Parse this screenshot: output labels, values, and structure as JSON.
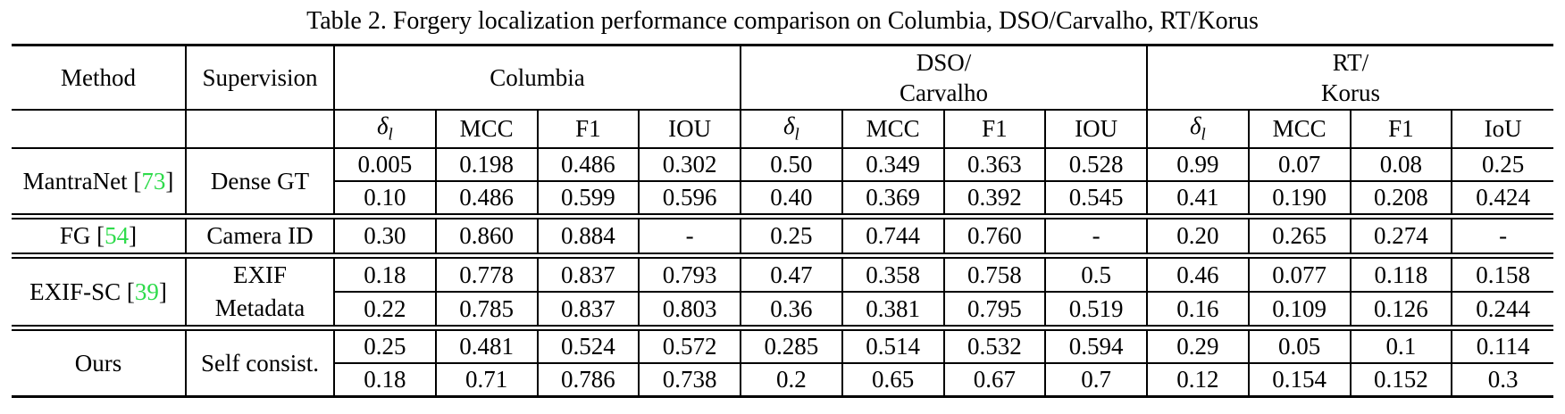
{
  "caption": "Table 2. Forgery localization performance comparison on Columbia, DSO/Carvalho, RT/Korus",
  "colors": {
    "citation_green": "#2EDB4B",
    "text": "#000000",
    "border": "#000000",
    "background": "#FFFFFF"
  },
  "header": {
    "method": "Method",
    "supervision": "Supervision",
    "groups": [
      {
        "line1": "Columbia",
        "line2": ""
      },
      {
        "line1": "DSO/",
        "line2": "Carvalho"
      },
      {
        "line1": "RT/",
        "line2": "Korus"
      }
    ]
  },
  "subheader": {
    "cells": [
      {
        "main": "δ",
        "sub": "l"
      },
      {
        "main": "MCC",
        "sub": ""
      },
      {
        "main": "F1",
        "sub": ""
      },
      {
        "main": "IOU",
        "sub": ""
      },
      {
        "main": "δ",
        "sub": "l"
      },
      {
        "main": "MCC",
        "sub": ""
      },
      {
        "main": "F1",
        "sub": ""
      },
      {
        "main": "IOU",
        "sub": ""
      },
      {
        "main": "δ",
        "sub": "l"
      },
      {
        "main": "MCC",
        "sub": ""
      },
      {
        "main": "F1",
        "sub": ""
      },
      {
        "main": "IoU",
        "sub": ""
      }
    ]
  },
  "rows": [
    {
      "method_pre": "MantraNet [",
      "citation": "73",
      "method_post": "]",
      "supervision_line1": "Dense GT",
      "supervision_line2": "",
      "values": [
        [
          "0.005",
          "0.198",
          "0.486",
          "0.302",
          "0.50",
          "0.349",
          "0.363",
          "0.528",
          "0.99",
          "0.07",
          "0.08",
          "0.25"
        ],
        [
          "0.10",
          "0.486",
          "0.599",
          "0.596",
          "0.40",
          "0.369",
          "0.392",
          "0.545",
          "0.41",
          "0.190",
          "0.208",
          "0.424"
        ]
      ]
    },
    {
      "method_pre": "FG [",
      "citation": "54",
      "method_post": "]",
      "supervision_line1": "Camera ID",
      "supervision_line2": "",
      "values": [
        [
          "0.30",
          "0.860",
          "0.884",
          "-",
          "0.25",
          "0.744",
          "0.760",
          "-",
          "0.20",
          "0.265",
          "0.274",
          "-"
        ]
      ]
    },
    {
      "method_pre": "EXIF-SC [",
      "citation": "39",
      "method_post": "]",
      "supervision_line1": "EXIF",
      "supervision_line2": "Metadata",
      "values": [
        [
          "0.18",
          "0.778",
          "0.837",
          "0.793",
          "0.47",
          "0.358",
          "0.758",
          "0.5",
          "0.46",
          "0.077",
          "0.118",
          "0.158"
        ],
        [
          "0.22",
          "0.785",
          "0.837",
          "0.803",
          "0.36",
          "0.381",
          "0.795",
          "0.519",
          "0.16",
          "0.109",
          "0.126",
          "0.244"
        ]
      ]
    },
    {
      "method_pre": "Ours",
      "citation": "",
      "method_post": "",
      "supervision_line1": "Self consist.",
      "supervision_line2": "",
      "values": [
        [
          "0.25",
          "0.481",
          "0.524",
          "0.572",
          "0.285",
          "0.514",
          "0.532",
          "0.594",
          "0.29",
          "0.05",
          "0.1",
          "0.114"
        ],
        [
          "0.18",
          "0.71",
          "0.786",
          "0.738",
          "0.2",
          "0.65",
          "0.67",
          "0.7",
          "0.12",
          "0.154",
          "0.152",
          "0.3"
        ]
      ]
    }
  ]
}
